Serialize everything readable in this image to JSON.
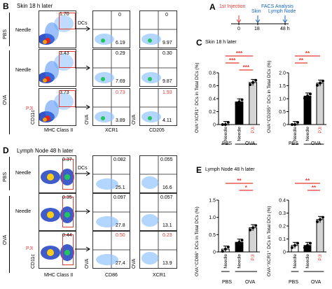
{
  "panels": {
    "A": {
      "letter": "A",
      "title": "FACS Analysis",
      "labels": [
        "1st Injection",
        "Skin",
        "Lymph Node"
      ],
      "ticks": [
        "0",
        "18",
        "48 h"
      ]
    },
    "B": {
      "letter": "B",
      "title": "Skin 18 h later",
      "gate_label": "DCs",
      "axis_x": "MHC Class II",
      "axis_y": "CD11c",
      "groups": [
        "PBS",
        "OVA"
      ],
      "rows": [
        {
          "label": "Needle",
          "gate": "1.70",
          "q1": "0",
          "q1b": "6.19",
          "q2": "0",
          "q2b": "9.97"
        },
        {
          "label": "Needle",
          "gate": "3.43",
          "q1": "0.29",
          "q1b": "7.69",
          "q2": "0.30",
          "q2b": "9.87"
        },
        {
          "label": "PJI",
          "gate": "3.73",
          "q1": "0.73",
          "q1b": "3.89",
          "q2": "1.93",
          "q2b": "4.11"
        }
      ],
      "col_x": [
        "XCR1",
        "CD205"
      ],
      "col_y": "OVA"
    },
    "C": {
      "letter": "C",
      "title": "Skin 18 h later",
      "y1": "OVA⁺XCR1⁺ DCs in Total DCs (%)",
      "y2": "OVA⁺CD205⁺ DCs in Total DCs (%)",
      "y1_ticks": [
        "0",
        "0.2",
        "0.4",
        "0.6",
        "0.8"
      ],
      "y2_ticks": [
        "0",
        "0.5",
        "1.0",
        "1.5",
        "2.0"
      ],
      "x_labels": [
        "Needle",
        "Needle",
        "PJI"
      ],
      "group_labels": [
        "PBS",
        "OVA"
      ],
      "sig1": [
        "***",
        "***",
        "***"
      ],
      "sig2": [
        "**",
        "**"
      ]
    },
    "D": {
      "letter": "D",
      "title": "Lymph  Node 48 h later",
      "gate_label": "DCs",
      "axis_x": "MHC Class II",
      "axis_y": "CD11c",
      "groups": [
        "PBS",
        "OVA"
      ],
      "rows": [
        {
          "label": "Needle",
          "gate": "0.37",
          "q1": "0.082",
          "q1b": "25.1",
          "q2": "0.055",
          "q2b": "16.6"
        },
        {
          "label": "Needle",
          "gate": "0.35",
          "q1": "0.097",
          "q1b": "27.8",
          "q2": "0.057",
          "q2b": "13.1"
        },
        {
          "label": "PJI",
          "gate": "0.44",
          "q1": "0.50",
          "q1b": "27.4",
          "q2": "0.23",
          "q2b": "13.9"
        }
      ],
      "col_x": [
        "CD86",
        "XCR1"
      ],
      "col_y": "OVA"
    },
    "E": {
      "letter": "E",
      "title": "Lymph  Node 48 h later",
      "y1": "OVA⁺CD86⁺ DCs in Total DCs (%)",
      "y2": "OVA⁺XCR1⁺ DCs in Total DCs (%)",
      "y1_ticks": [
        "0",
        "0.5",
        "1.0",
        "1.5"
      ],
      "y2_ticks": [
        "0",
        "0.1",
        "0.2",
        "0.3",
        "0.4"
      ],
      "x_labels": [
        "Needle",
        "Needle",
        "PJI"
      ],
      "group_labels": [
        "PBS",
        "OVA"
      ],
      "sig1": [
        "**",
        "*"
      ],
      "sig2": [
        "**",
        "**"
      ]
    }
  },
  "chart_data": [
    {
      "type": "bar",
      "panel": "C-left",
      "categories": [
        "PBS Needle",
        "OVA Needle",
        "OVA PJI"
      ],
      "values": [
        0,
        0.35,
        0.65
      ],
      "ylim": [
        0,
        0.8
      ],
      "title": "",
      "ylabel": "OVA⁺XCR1⁺ DCs in Total DCs (%)"
    },
    {
      "type": "bar",
      "panel": "C-right",
      "categories": [
        "PBS Needle",
        "OVA Needle",
        "OVA PJI"
      ],
      "values": [
        0,
        1.1,
        1.6
      ],
      "ylim": [
        0,
        2.0
      ],
      "title": "",
      "ylabel": "OVA⁺CD205⁺ DCs in Total DCs (%)"
    },
    {
      "type": "bar",
      "panel": "E-left",
      "categories": [
        "PBS Needle",
        "OVA Needle",
        "OVA PJI"
      ],
      "values": [
        0.08,
        0.28,
        0.7
      ],
      "ylim": [
        0,
        1.5
      ],
      "title": "",
      "ylabel": "OVA⁺CD86⁺ DCs in Total DCs (%)"
    },
    {
      "type": "bar",
      "panel": "E-right",
      "categories": [
        "PBS Needle",
        "OVA Needle",
        "OVA PJI"
      ],
      "values": [
        0.05,
        0.05,
        0.25
      ],
      "ylim": [
        0,
        0.4
      ],
      "title": "",
      "ylabel": "OVA⁺XCR1⁺ DCs in Total DCs (%)"
    }
  ]
}
